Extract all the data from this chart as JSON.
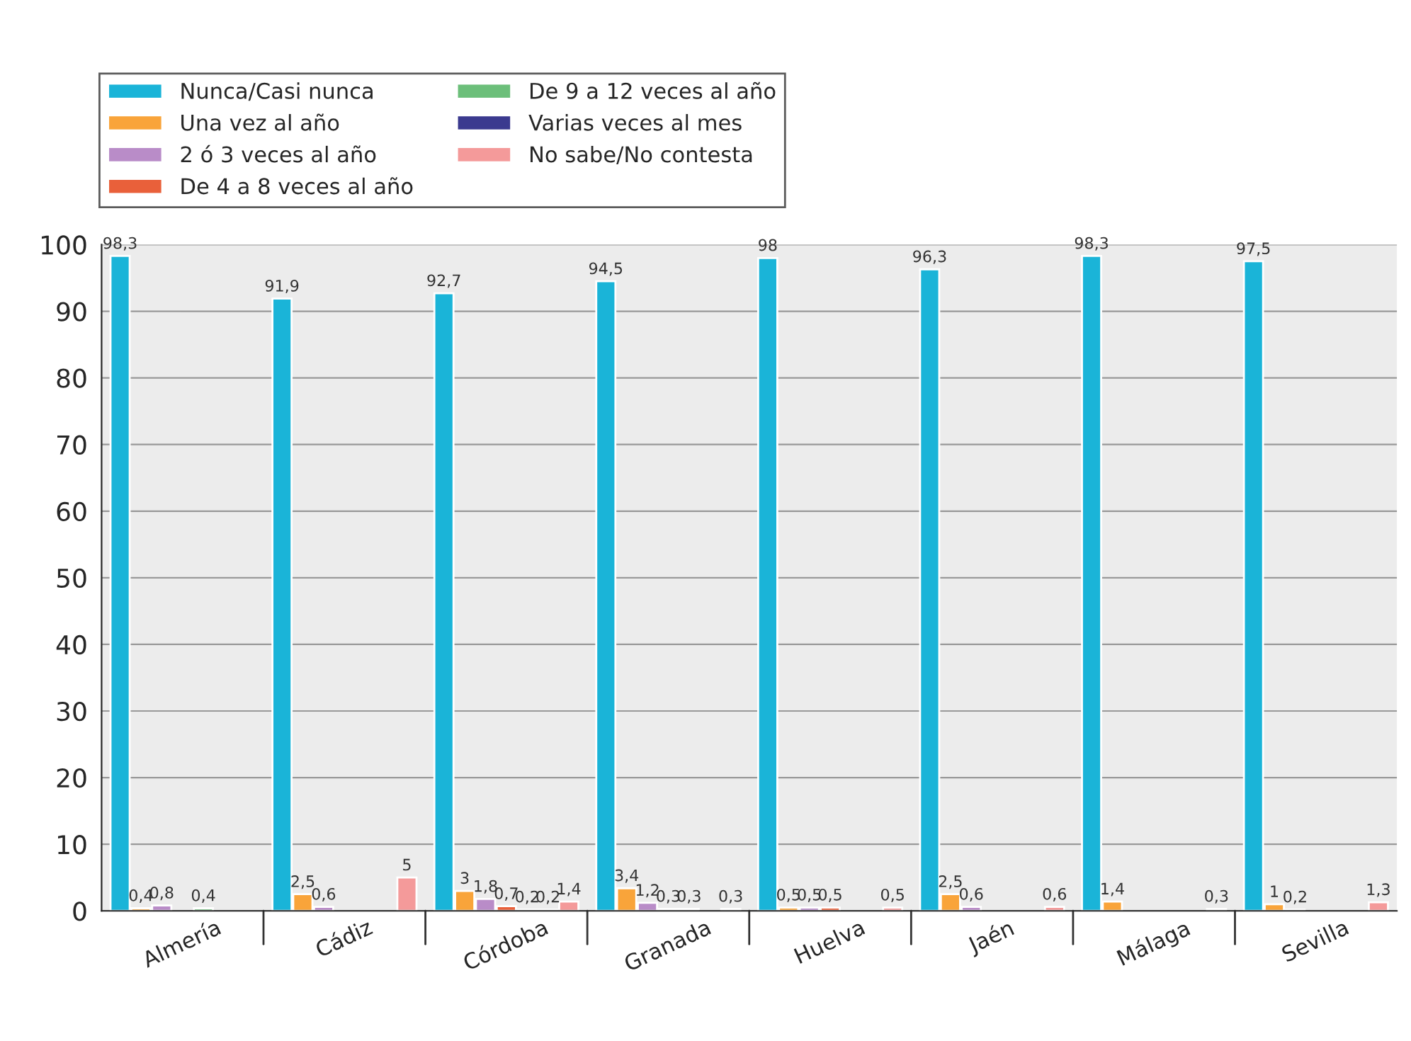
{
  "chart_data": {
    "type": "bar",
    "categories": [
      "Almería",
      "Cádiz",
      "Córdoba",
      "Granada",
      "Huelva",
      "Jaén",
      "Málaga",
      "Sevilla"
    ],
    "series": [
      {
        "name": "Nunca/Casi nunca",
        "color": "#1ab4d8",
        "values": [
          98.3,
          91.9,
          92.7,
          94.5,
          98,
          96.3,
          98.3,
          97.5
        ],
        "value_labels": [
          "98,3",
          "91,9",
          "92,7",
          "94,5",
          "98",
          "96,3",
          "98,3",
          "97,5"
        ]
      },
      {
        "name": "Una vez al año",
        "color": "#f9a43a",
        "values": [
          0.4,
          2.5,
          3,
          3.4,
          0.5,
          2.5,
          1.4,
          1
        ],
        "value_labels": [
          "0,4",
          "2,5",
          "3",
          "3,4",
          "0,5",
          "2,5",
          "1,4",
          "1"
        ]
      },
      {
        "name": "2 ó 3 veces al año",
        "color": "#b98cc8",
        "values": [
          0.8,
          0.6,
          1.8,
          1.2,
          0.5,
          0.6,
          null,
          0.2
        ],
        "value_labels": [
          "0,8",
          "0,6",
          "1,8",
          "1,2",
          "0,5",
          "0,6",
          null,
          "0,2"
        ]
      },
      {
        "name": "De 4 a 8 veces al año",
        "color": "#e9603a",
        "values": [
          null,
          null,
          0.7,
          0.3,
          0.5,
          null,
          null,
          null
        ],
        "value_labels": [
          null,
          null,
          "0,7",
          "0,3",
          "0,5",
          null,
          null,
          null
        ]
      },
      {
        "name": "De 9 a 12 veces al año",
        "color": "#6cbf7a",
        "values": [
          0.4,
          null,
          0.2,
          0.3,
          null,
          null,
          null,
          null
        ],
        "value_labels": [
          "0,4",
          null,
          "0,2",
          "0,3",
          null,
          null,
          null,
          null
        ]
      },
      {
        "name": "Varias veces al mes",
        "color": "#3b3a8f",
        "values": [
          null,
          null,
          0.2,
          null,
          null,
          null,
          null,
          null
        ],
        "value_labels": [
          null,
          null,
          "0,2",
          null,
          null,
          null,
          null,
          null
        ]
      },
      {
        "name": "No sabe/No contesta",
        "color": "#f49a9a",
        "values": [
          null,
          5,
          1.4,
          0.3,
          0.5,
          0.6,
          0.3,
          1.3
        ],
        "value_labels": [
          null,
          "5",
          "1,4",
          "0,3",
          "0,5",
          "0,6",
          "0,3",
          "1,3"
        ]
      }
    ],
    "ylim": [
      0,
      100
    ],
    "yticks": [
      0,
      10,
      20,
      30,
      40,
      50,
      60,
      70,
      80,
      90,
      100
    ],
    "grid": "y",
    "legend": "top left"
  }
}
